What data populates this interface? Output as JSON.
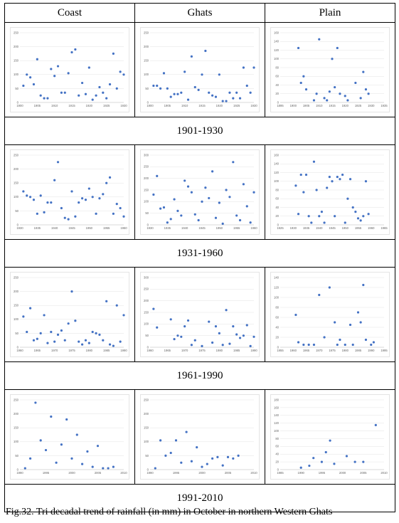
{
  "headers": [
    "Coast",
    "Ghats",
    "Plain"
  ],
  "periods": [
    "1901-1930",
    "1931-1960",
    "1961-1990",
    "1991-2010"
  ],
  "caption": "Fig.32. Tri decadal trend of rainfall (in mm) in October in northern Western Ghats",
  "marker_color": "#4472C4",
  "chart_data": [
    {
      "type": "scatter",
      "region": "Coast",
      "period": "1901-1930",
      "xlim": [
        1900,
        1930
      ],
      "ylim": [
        0,
        250
      ],
      "xticks": [
        1900,
        1905,
        1910,
        1915,
        1920,
        1925,
        1930
      ],
      "yticks": [
        0,
        50,
        100,
        150,
        200,
        250
      ],
      "x": [
        1901,
        1902,
        1903,
        1904,
        1905,
        1906,
        1907,
        1908,
        1909,
        1910,
        1911,
        1912,
        1913,
        1914,
        1915,
        1916,
        1917,
        1918,
        1919,
        1920,
        1921,
        1922,
        1923,
        1924,
        1925,
        1926,
        1927,
        1928,
        1929,
        1930
      ],
      "y": [
        60,
        100,
        90,
        65,
        155,
        25,
        15,
        15,
        120,
        95,
        130,
        35,
        35,
        105,
        180,
        190,
        25,
        70,
        30,
        125,
        10,
        25,
        55,
        35,
        15,
        65,
        175,
        50,
        110,
        100
      ]
    },
    {
      "type": "scatter",
      "region": "Ghats",
      "period": "1901-1930",
      "xlim": [
        1900,
        1930
      ],
      "ylim": [
        0,
        250
      ],
      "xticks": [
        1900,
        1905,
        1910,
        1915,
        1920,
        1925,
        1930
      ],
      "yticks": [
        0,
        50,
        100,
        150,
        200,
        250
      ],
      "x": [
        1901,
        1902,
        1903,
        1904,
        1905,
        1906,
        1907,
        1908,
        1909,
        1910,
        1911,
        1912,
        1913,
        1914,
        1915,
        1916,
        1917,
        1918,
        1919,
        1920,
        1921,
        1922,
        1923,
        1924,
        1925,
        1926,
        1927,
        1928,
        1929,
        1930
      ],
      "y": [
        60,
        60,
        50,
        105,
        50,
        20,
        30,
        30,
        35,
        110,
        10,
        165,
        55,
        45,
        100,
        185,
        35,
        25,
        20,
        100,
        5,
        5,
        35,
        15,
        35,
        15,
        125,
        60,
        35,
        125
      ]
    },
    {
      "type": "scatter",
      "region": "Plain",
      "period": "1901-1930",
      "xlim": [
        1895,
        1935
      ],
      "ylim": [
        0,
        160
      ],
      "xticks": [
        1895,
        1900,
        1905,
        1910,
        1915,
        1920,
        1925,
        1930,
        1935
      ],
      "yticks": [
        0,
        20,
        40,
        60,
        80,
        100,
        120,
        140,
        160
      ],
      "x": [
        1902,
        1903,
        1904,
        1905,
        1908,
        1909,
        1910,
        1912,
        1913,
        1914,
        1915,
        1916,
        1917,
        1918,
        1920,
        1921,
        1924,
        1926,
        1927,
        1928,
        1929
      ],
      "y": [
        125,
        45,
        60,
        30,
        5,
        20,
        145,
        10,
        5,
        25,
        100,
        35,
        125,
        20,
        15,
        5,
        45,
        10,
        70,
        30,
        20
      ]
    },
    {
      "type": "scatter",
      "region": "Coast",
      "period": "1931-1960",
      "xlim": [
        1930,
        1960
      ],
      "ylim": [
        0,
        250
      ],
      "xticks": [
        1930,
        1935,
        1940,
        1945,
        1950,
        1955,
        1960
      ],
      "yticks": [
        0,
        50,
        100,
        150,
        200,
        250
      ],
      "x": [
        1931,
        1932,
        1933,
        1934,
        1935,
        1936,
        1937,
        1938,
        1939,
        1940,
        1941,
        1942,
        1943,
        1944,
        1945,
        1946,
        1947,
        1948,
        1949,
        1950,
        1951,
        1952,
        1953,
        1954,
        1955,
        1956,
        1957,
        1958,
        1959,
        1960
      ],
      "y": [
        120,
        105,
        100,
        90,
        40,
        105,
        45,
        80,
        80,
        160,
        225,
        60,
        25,
        20,
        120,
        30,
        80,
        95,
        90,
        130,
        100,
        40,
        95,
        110,
        150,
        170,
        40,
        75,
        60,
        30
      ]
    },
    {
      "type": "scatter",
      "region": "Ghats",
      "period": "1931-1960",
      "xlim": [
        1930,
        1960
      ],
      "ylim": [
        0,
        300
      ],
      "xticks": [
        1930,
        1935,
        1940,
        1945,
        1950,
        1955,
        1960
      ],
      "yticks": [
        0,
        50,
        100,
        150,
        200,
        250,
        300
      ],
      "x": [
        1931,
        1932,
        1933,
        1934,
        1935,
        1936,
        1937,
        1938,
        1939,
        1940,
        1941,
        1942,
        1943,
        1944,
        1945,
        1946,
        1947,
        1948,
        1949,
        1950,
        1951,
        1952,
        1953,
        1954,
        1955,
        1956,
        1957,
        1958,
        1959,
        1960
      ],
      "y": [
        130,
        210,
        70,
        75,
        10,
        25,
        110,
        60,
        40,
        190,
        165,
        140,
        45,
        20,
        100,
        160,
        115,
        230,
        30,
        95,
        5,
        150,
        120,
        270,
        40,
        20,
        175,
        80,
        10,
        140
      ]
    },
    {
      "type": "scatter",
      "region": "Plain",
      "period": "1931-1960",
      "xlim": [
        1925,
        1965
      ],
      "ylim": [
        0,
        160
      ],
      "xticks": [
        1925,
        1930,
        1935,
        1940,
        1945,
        1950,
        1955,
        1960,
        1965
      ],
      "yticks": [
        0,
        20,
        40,
        60,
        80,
        100,
        120,
        140,
        160
      ],
      "x": [
        1931,
        1932,
        1933,
        1934,
        1935,
        1936,
        1937,
        1938,
        1939,
        1940,
        1941,
        1942,
        1943,
        1944,
        1945,
        1946,
        1947,
        1948,
        1949,
        1950,
        1951,
        1952,
        1953,
        1954,
        1955,
        1956,
        1957,
        1958,
        1959
      ],
      "y": [
        90,
        25,
        115,
        75,
        115,
        20,
        5,
        145,
        80,
        20,
        30,
        5,
        85,
        110,
        100,
        20,
        110,
        105,
        115,
        5,
        60,
        105,
        40,
        30,
        15,
        10,
        20,
        100,
        25
      ]
    },
    {
      "type": "scatter",
      "region": "Coast",
      "period": "1961-1990",
      "xlim": [
        1960,
        1990
      ],
      "ylim": [
        0,
        250
      ],
      "xticks": [
        1960,
        1965,
        1970,
        1975,
        1980,
        1985,
        1990
      ],
      "yticks": [
        0,
        50,
        100,
        150,
        200,
        250
      ],
      "x": [
        1961,
        1962,
        1963,
        1964,
        1965,
        1966,
        1967,
        1968,
        1969,
        1970,
        1971,
        1972,
        1973,
        1974,
        1975,
        1976,
        1977,
        1978,
        1979,
        1980,
        1981,
        1982,
        1983,
        1984,
        1985,
        1986,
        1987,
        1988,
        1989,
        1990
      ],
      "y": [
        110,
        55,
        140,
        25,
        30,
        50,
        115,
        15,
        55,
        20,
        45,
        60,
        25,
        85,
        200,
        95,
        20,
        10,
        25,
        15,
        55,
        50,
        45,
        25,
        165,
        10,
        5,
        150,
        20,
        115
      ]
    },
    {
      "type": "scatter",
      "region": "Ghats",
      "period": "1961-1990",
      "xlim": [
        1960,
        1990
      ],
      "ylim": [
        0,
        300
      ],
      "xticks": [
        1960,
        1965,
        1970,
        1975,
        1980,
        1985,
        1990
      ],
      "yticks": [
        0,
        50,
        100,
        150,
        200,
        250,
        300
      ],
      "x": [
        1961,
        1962,
        1966,
        1967,
        1968,
        1969,
        1970,
        1971,
        1972,
        1973,
        1975,
        1977,
        1978,
        1979,
        1980,
        1981,
        1982,
        1983,
        1984,
        1985,
        1986,
        1987,
        1988,
        1989,
        1990
      ],
      "y": [
        165,
        85,
        120,
        35,
        50,
        45,
        90,
        115,
        10,
        30,
        5,
        110,
        20,
        90,
        60,
        10,
        160,
        15,
        90,
        55,
        40,
        50,
        95,
        5,
        45
      ]
    },
    {
      "type": "scatter",
      "region": "Plain",
      "period": "1961-1990",
      "xlim": [
        1955,
        1995
      ],
      "ylim": [
        0,
        140
      ],
      "xticks": [
        1955,
        1960,
        1965,
        1970,
        1975,
        1980,
        1985,
        1990,
        1995
      ],
      "yticks": [
        0,
        20,
        40,
        60,
        80,
        100,
        120,
        140
      ],
      "x": [
        1961,
        1962,
        1964,
        1966,
        1968,
        1970,
        1972,
        1974,
        1976,
        1977,
        1978,
        1980,
        1982,
        1983,
        1985,
        1986,
        1987,
        1988,
        1990,
        1991
      ],
      "y": [
        65,
        10,
        5,
        5,
        5,
        105,
        20,
        120,
        50,
        5,
        15,
        5,
        45,
        5,
        70,
        50,
        125,
        15,
        5,
        10
      ]
    },
    {
      "type": "scatter",
      "region": "Coast",
      "period": "1991-2010",
      "xlim": [
        1990,
        2010
      ],
      "ylim": [
        0,
        250
      ],
      "xticks": [
        1990,
        1995,
        2000,
        2005,
        2010
      ],
      "yticks": [
        0,
        50,
        100,
        150,
        200,
        250
      ],
      "x": [
        1991,
        1992,
        1993,
        1994,
        1995,
        1996,
        1997,
        1998,
        1999,
        2000,
        2001,
        2002,
        2003,
        2004,
        2005,
        2006,
        2007,
        2008
      ],
      "y": [
        5,
        40,
        240,
        105,
        70,
        190,
        25,
        90,
        180,
        40,
        125,
        20,
        65,
        10,
        85,
        5,
        5,
        10
      ]
    },
    {
      "type": "scatter",
      "region": "Ghats",
      "period": "1991-2010",
      "xlim": [
        1990,
        2010
      ],
      "ylim": [
        0,
        250
      ],
      "xticks": [
        1990,
        1995,
        2000,
        2005,
        2010
      ],
      "yticks": [
        0,
        50,
        100,
        150,
        200,
        250
      ],
      "x": [
        1991,
        1992,
        1993,
        1994,
        1995,
        1996,
        1997,
        1998,
        1999,
        2000,
        2001,
        2002,
        2003,
        2004,
        2005,
        2006,
        2007
      ],
      "y": [
        5,
        105,
        50,
        60,
        105,
        25,
        135,
        30,
        80,
        10,
        20,
        40,
        45,
        15,
        45,
        40,
        50
      ]
    },
    {
      "type": "scatter",
      "region": "Plain",
      "period": "1991-2010",
      "xlim": [
        1985,
        2010
      ],
      "ylim": [
        0,
        180
      ],
      "xticks": [
        1985,
        1990,
        1995,
        2000,
        2005,
        2010
      ],
      "yticks": [
        0,
        20,
        40,
        60,
        80,
        100,
        120,
        140,
        160,
        180
      ],
      "x": [
        1990,
        1992,
        1993,
        1995,
        1996,
        1997,
        1998,
        2001,
        2003,
        2005,
        2008
      ],
      "y": [
        5,
        10,
        30,
        20,
        45,
        75,
        15,
        35,
        20,
        20,
        115
      ]
    }
  ]
}
